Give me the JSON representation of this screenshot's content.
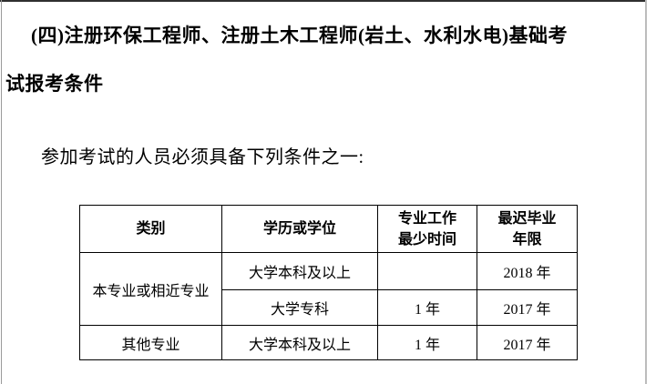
{
  "document": {
    "heading_line1": "(四)注册环保工程师、注册土木工程师(岩土、水利水电)基础考",
    "heading_line2": "试报考条件",
    "intro": "参加考试的人员必须具备下列条件之一:"
  },
  "table": {
    "headers": {
      "category": "类别",
      "education": "学历或学位",
      "min_work_time": "专业工作\n最少时间",
      "latest_graduation": "最迟毕业\n年限"
    },
    "rows": [
      {
        "category": "本专业或相近专业",
        "education": "大学本科及以上",
        "min_work_time": "",
        "latest_graduation": "2018 年"
      },
      {
        "education": "大学专科",
        "min_work_time": "1 年",
        "latest_graduation": "2017 年"
      },
      {
        "category": "其他专业",
        "education": "大学本科及以上",
        "min_work_time": "1 年",
        "latest_graduation": "2017 年"
      }
    ]
  }
}
